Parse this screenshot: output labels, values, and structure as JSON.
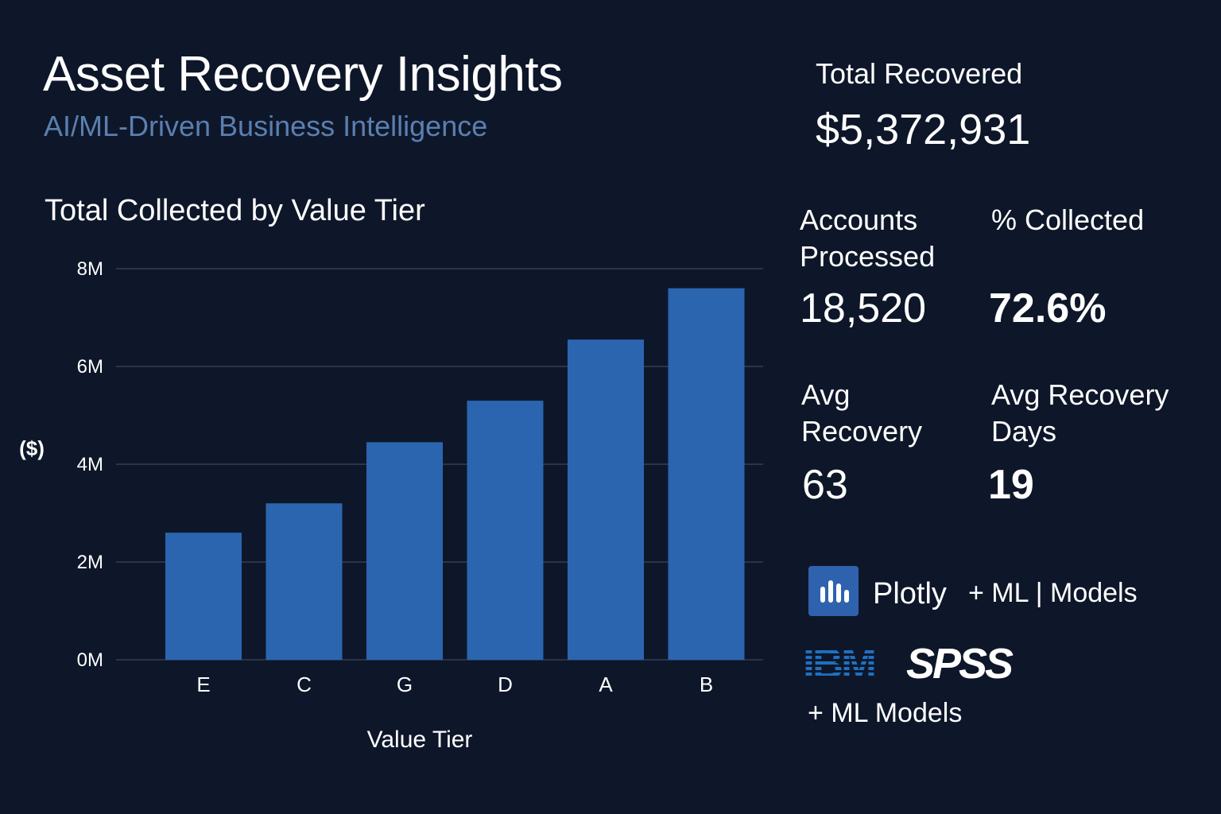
{
  "header": {
    "title": "Asset Recovery Insights",
    "subtitle": "AI/ML-Driven Business Intelligence"
  },
  "kpis": {
    "total_recovered": {
      "label": "Total Recovered",
      "value": "$5,372,931"
    },
    "accounts_processed": {
      "label_line1": "Accounts",
      "label_line2": "Processed",
      "value": "18,520"
    },
    "pct_collected": {
      "label": "% Collected",
      "value": "72.6%"
    },
    "avg_recovery": {
      "label_line1": "Avg",
      "label_line2": "Recovery",
      "value": "63"
    },
    "avg_recovery_days": {
      "label_line1": "Avg Recovery",
      "label_line2": "Days",
      "value": "19"
    }
  },
  "tech": {
    "plotly_text": "Plotly",
    "plotly_suffix": "+ ML | Models",
    "ibm": "IBM",
    "spss": "SPSS",
    "spss_suffix": "+ ML Models",
    "plotly_icon": "bar-chart-icon"
  },
  "colors": {
    "background": "#0e1729",
    "bar": "#2b65b0",
    "gridline": "#3a4660",
    "subtitle": "#5b7fb1"
  },
  "chart_data": {
    "type": "bar",
    "title": "Total Collected by Value Tier",
    "xlabel": "Value Tier",
    "ylabel": "($)",
    "categories": [
      "E",
      "C",
      "G",
      "D",
      "A",
      "B"
    ],
    "values": [
      2600000,
      3200000,
      4450000,
      5300000,
      6550000,
      7600000
    ],
    "ylim": [
      0,
      8000000
    ],
    "yticks": [
      0,
      2000000,
      4000000,
      6000000,
      8000000
    ],
    "ytick_labels": [
      "0M",
      "2M",
      "4M",
      "6M",
      "8M"
    ],
    "grid": true,
    "legend": "none"
  }
}
